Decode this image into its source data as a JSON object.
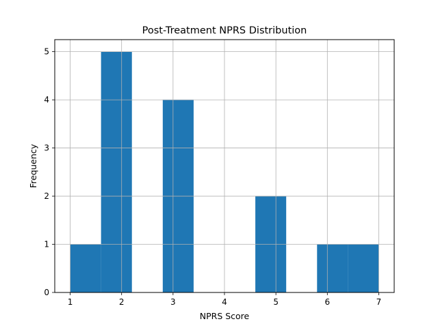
{
  "chart_data": {
    "type": "bar",
    "title": "Post-Treatment NPRS Distribution",
    "xlabel": "NPRS Score",
    "ylabel": "Frequency",
    "xlim": [
      0.7,
      7.3
    ],
    "ylim": [
      0,
      5.25
    ],
    "xticks": [
      1,
      2,
      3,
      4,
      5,
      6,
      7
    ],
    "yticks": [
      0,
      1,
      2,
      3,
      4,
      5
    ],
    "grid": true,
    "bar_color": "#1f77b4",
    "bins": [
      {
        "x0": 1.0,
        "x1": 1.6,
        "value": 1
      },
      {
        "x0": 1.6,
        "x1": 2.2,
        "value": 5
      },
      {
        "x0": 2.2,
        "x1": 2.8,
        "value": 0
      },
      {
        "x0": 2.8,
        "x1": 3.4,
        "value": 4
      },
      {
        "x0": 3.4,
        "x1": 4.0,
        "value": 0
      },
      {
        "x0": 4.0,
        "x1": 4.6,
        "value": 0
      },
      {
        "x0": 4.6,
        "x1": 5.2,
        "value": 2
      },
      {
        "x0": 5.2,
        "x1": 5.8,
        "value": 0
      },
      {
        "x0": 5.8,
        "x1": 6.4,
        "value": 1
      },
      {
        "x0": 6.4,
        "x1": 7.0,
        "value": 1
      }
    ]
  }
}
